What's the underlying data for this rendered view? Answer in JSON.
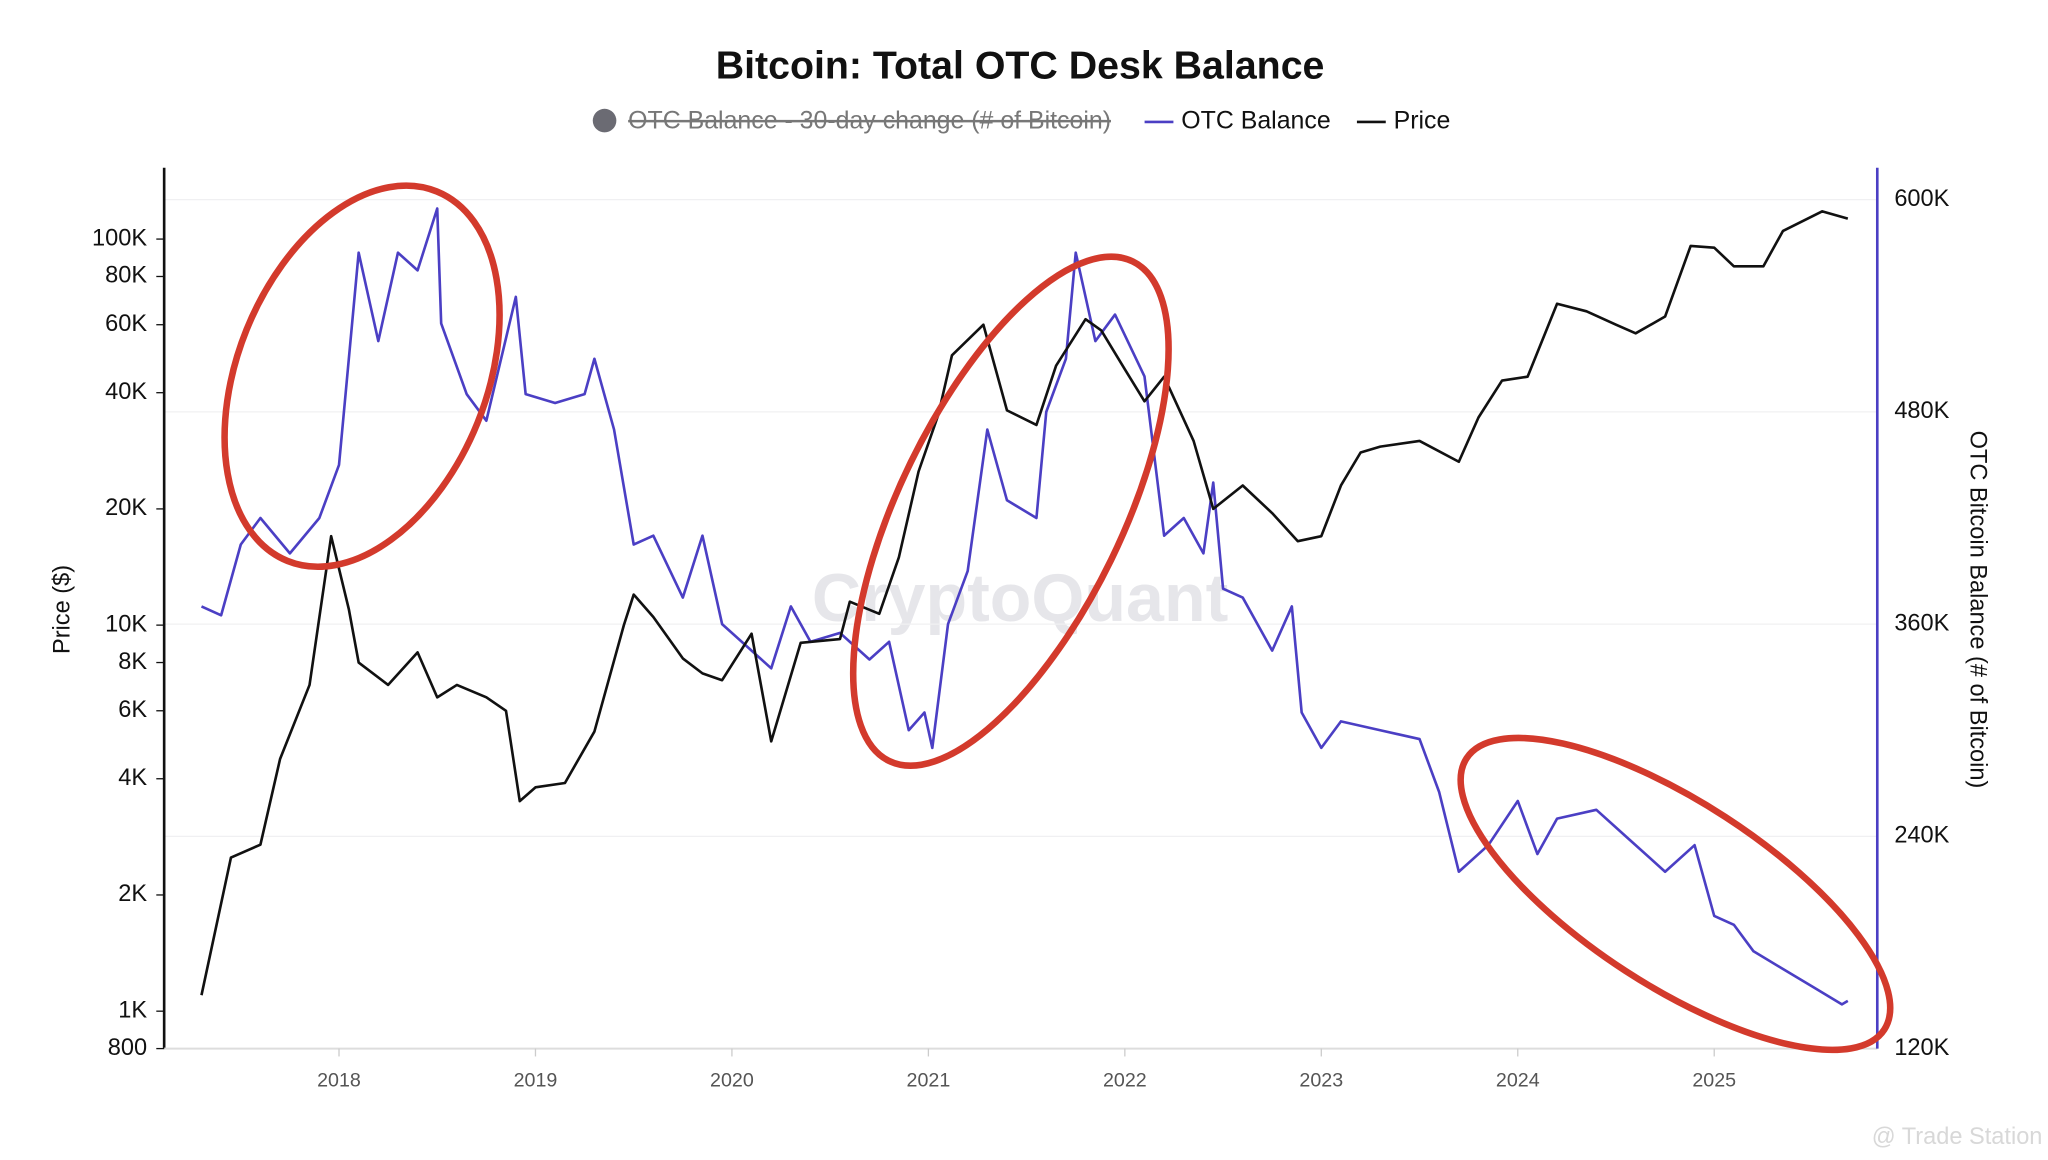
{
  "chart_data": {
    "type": "line",
    "title": "Bitcoin: Total OTC Desk Balance",
    "y_label": "Price ($)",
    "y2_label": "OTC Bitcoin Balance (# of Bitcoin)",
    "watermark": "CryptoQuant",
    "credit": "@ Trade Station",
    "xlim": [
      2017.11,
      2025.83
    ],
    "xticks": [
      2018,
      2019,
      2020,
      2021,
      2022,
      2023,
      2024,
      2025
    ],
    "log_y": true,
    "ylim": [
      800,
      153000
    ],
    "yticks": [
      800,
      {
        "value": 1000,
        "label": "1K"
      },
      {
        "value": 2000,
        "label": "2K"
      },
      {
        "value": 4000,
        "label": "4K"
      },
      {
        "value": 6000,
        "label": "6K"
      },
      {
        "value": 8000,
        "label": "8K"
      },
      {
        "value": 10000,
        "label": "10K"
      },
      {
        "value": 20000,
        "label": "20K"
      },
      {
        "value": 40000,
        "label": "40K"
      },
      {
        "value": 60000,
        "label": "60K"
      },
      {
        "value": 80000,
        "label": "80K"
      },
      {
        "value": 100000,
        "label": "100K"
      }
    ],
    "y2lim": [
      120000,
      618000
    ],
    "y2ticks": [
      {
        "value": 120000,
        "label": "120K"
      },
      {
        "value": 240000,
        "label": "240K"
      },
      {
        "value": 360000,
        "label": "360K"
      },
      {
        "value": 480000,
        "label": "480K"
      },
      {
        "value": 600000,
        "label": "600K"
      }
    ],
    "grid": true,
    "series": [
      {
        "name": "OTC Balance - 30-day change (# of Bitcoin)",
        "color": "#6b6b73",
        "hidden": true,
        "x": [],
        "values": []
      },
      {
        "name": "OTC Balance",
        "color": "#4b3fc4",
        "axis": "y2",
        "x": [
          2017.3,
          2017.4,
          2017.5,
          2017.6,
          2017.75,
          2017.9,
          2018.0,
          2018.1,
          2018.2,
          2018.3,
          2018.4,
          2018.5,
          2018.52,
          2018.65,
          2018.75,
          2018.9,
          2018.95,
          2019.1,
          2019.25,
          2019.3,
          2019.4,
          2019.5,
          2019.6,
          2019.75,
          2019.85,
          2019.95,
          2020.1,
          2020.2,
          2020.3,
          2020.4,
          2020.55,
          2020.7,
          2020.8,
          2020.9,
          2020.98,
          2021.02,
          2021.1,
          2021.2,
          2021.3,
          2021.4,
          2021.55,
          2021.6,
          2021.7,
          2021.75,
          2021.85,
          2021.95,
          2022.1,
          2022.2,
          2022.3,
          2022.4,
          2022.45,
          2022.5,
          2022.6,
          2022.75,
          2022.85,
          2022.9,
          2023.0,
          2023.1,
          2023.3,
          2023.5,
          2023.6,
          2023.7,
          2023.85,
          2024.0,
          2024.1,
          2024.2,
          2024.4,
          2024.55,
          2024.75,
          2024.9,
          2025.0,
          2025.1,
          2025.2,
          2025.35,
          2025.5,
          2025.65,
          2025.68
        ],
        "values": [
          370000,
          365000,
          405000,
          420000,
          400000,
          420000,
          450000,
          570000,
          520000,
          570000,
          560000,
          595000,
          530000,
          490000,
          475000,
          545000,
          490000,
          485000,
          490000,
          510000,
          470000,
          405000,
          410000,
          375000,
          410000,
          360000,
          345000,
          335000,
          370000,
          350000,
          355000,
          340000,
          350000,
          300000,
          310000,
          290000,
          360000,
          390000,
          470000,
          430000,
          420000,
          480000,
          510000,
          570000,
          520000,
          535000,
          500000,
          410000,
          420000,
          400000,
          440000,
          380000,
          375000,
          345000,
          370000,
          310000,
          290000,
          305000,
          300000,
          295000,
          265000,
          220000,
          235000,
          260000,
          230000,
          250000,
          255000,
          240000,
          220000,
          235000,
          195000,
          190000,
          175000,
          165000,
          155000,
          145000,
          147000
        ]
      },
      {
        "name": "Price",
        "color": "#111111",
        "x": [
          2017.3,
          2017.45,
          2017.6,
          2017.7,
          2017.85,
          2017.96,
          2018.05,
          2018.1,
          2018.25,
          2018.4,
          2018.5,
          2018.6,
          2018.75,
          2018.85,
          2018.92,
          2019.0,
          2019.15,
          2019.3,
          2019.45,
          2019.5,
          2019.6,
          2019.75,
          2019.85,
          2019.95,
          2020.1,
          2020.2,
          2020.35,
          2020.55,
          2020.6,
          2020.75,
          2020.85,
          2020.95,
          2021.05,
          2021.12,
          2021.28,
          2021.4,
          2021.55,
          2021.65,
          2021.8,
          2021.88,
          2022.0,
          2022.1,
          2022.2,
          2022.35,
          2022.45,
          2022.6,
          2022.75,
          2022.88,
          2023.0,
          2023.1,
          2023.2,
          2023.3,
          2023.5,
          2023.7,
          2023.8,
          2023.92,
          2024.05,
          2024.2,
          2024.35,
          2024.5,
          2024.6,
          2024.75,
          2024.88,
          2025.0,
          2025.1,
          2025.25,
          2025.35,
          2025.55,
          2025.68
        ],
        "values": [
          1100,
          2500,
          2700,
          4500,
          7000,
          17000,
          11000,
          8000,
          7000,
          8500,
          6500,
          7000,
          6500,
          6000,
          3500,
          3800,
          3900,
          5300,
          10000,
          12000,
          10500,
          8200,
          7500,
          7200,
          9500,
          5000,
          9000,
          9200,
          11500,
          10700,
          15000,
          25000,
          35000,
          50000,
          60000,
          36000,
          33000,
          47000,
          62000,
          58000,
          46000,
          38000,
          44000,
          30000,
          20000,
          23000,
          19500,
          16500,
          17000,
          23000,
          28000,
          29000,
          30000,
          26500,
          34500,
          43000,
          44000,
          68000,
          65000,
          60000,
          57000,
          63000,
          96000,
          95000,
          85000,
          85000,
          105000,
          118000,
          113000
        ]
      }
    ]
  }
}
